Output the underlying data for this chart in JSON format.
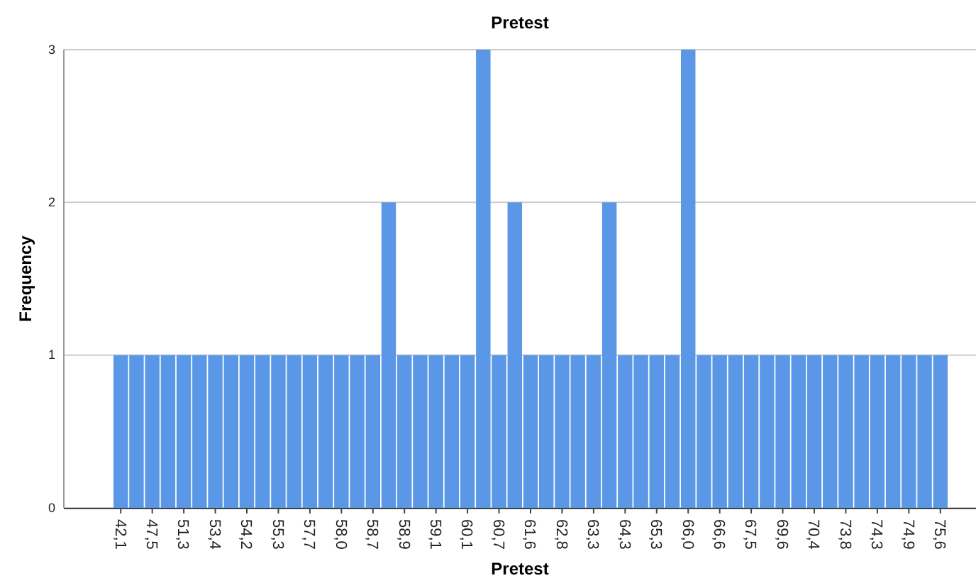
{
  "chart_data": {
    "type": "bar",
    "title": "Pretest",
    "xlabel": "Pretest",
    "ylabel": "Frequency",
    "categories": [
      "42,1",
      null,
      "47,5",
      null,
      "51,3",
      null,
      "53,4",
      null,
      "54,2",
      null,
      "55,3",
      null,
      "57,7",
      null,
      "58,0",
      null,
      "58,7",
      null,
      "58,9",
      null,
      "59,1",
      null,
      "60,1",
      null,
      "60,7",
      null,
      "61,6",
      null,
      "62,8",
      null,
      "63,3",
      null,
      "64,3",
      null,
      "65,3",
      null,
      "66,0",
      null,
      "66,6",
      null,
      "67,5",
      null,
      "69,6",
      null,
      "70,4",
      null,
      "73,8",
      null,
      "74,3",
      null,
      "74,9",
      null,
      "75,6"
    ],
    "values": [
      1,
      1,
      1,
      1,
      1,
      1,
      1,
      1,
      1,
      1,
      1,
      1,
      1,
      1,
      1,
      1,
      1,
      2,
      1,
      1,
      1,
      1,
      1,
      3,
      1,
      2,
      1,
      1,
      1,
      1,
      1,
      2,
      1,
      1,
      1,
      1,
      3,
      1,
      1,
      1,
      1,
      1,
      1,
      1,
      1,
      1,
      1,
      1,
      1,
      1,
      1,
      1,
      1
    ],
    "color": "#5a97e6",
    "ylim": [
      0,
      3
    ],
    "yticks": [
      0,
      1,
      2,
      3
    ],
    "grid": "y"
  }
}
